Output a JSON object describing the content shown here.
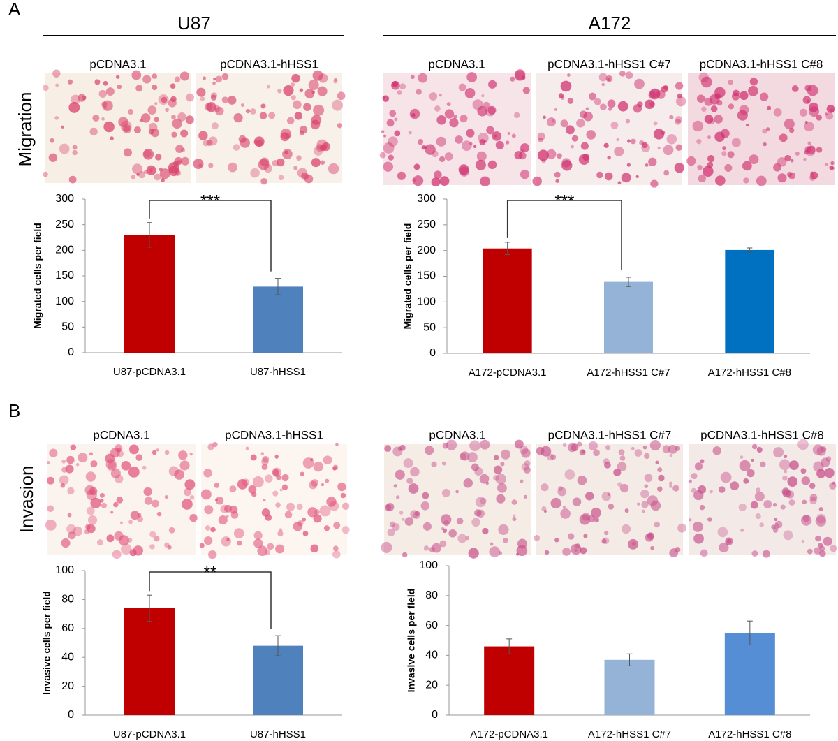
{
  "figure": {
    "panel_a": "A",
    "panel_b": "B",
    "groups": [
      "U87",
      "A172"
    ],
    "rows": [
      "Migration",
      "Invasion"
    ],
    "image_labels": {
      "u87": [
        "pCDNA3.1",
        "pCDNA3.1-hHSS1"
      ],
      "a172": [
        "pCDNA3.1",
        "pCDNA3.1-hHSS1 C#7",
        "pCDNA3.1-hHSS1 C#8"
      ]
    }
  },
  "chart_data": [
    {
      "type": "bar",
      "ylabel": "Migrated cells per field",
      "categories": [
        "U87-pCDNA3.1",
        "U87-hHSS1"
      ],
      "values": [
        230,
        129
      ],
      "errors": [
        24,
        16
      ],
      "colors": [
        "#c00000",
        "#4f81bd"
      ],
      "ylim": [
        0,
        300
      ],
      "yticks": [
        0,
        50,
        100,
        150,
        200,
        250,
        300
      ],
      "annotation": "***"
    },
    {
      "type": "bar",
      "ylabel": "Migrated cells per field",
      "categories": [
        "A172-pCDNA3.1",
        "A172-hHSS1 C#7",
        "A172-hHSS1 C#8"
      ],
      "values": [
        204,
        139,
        201
      ],
      "errors": [
        12,
        9,
        4
      ],
      "colors": [
        "#c00000",
        "#95b3d7",
        "#0070c0"
      ],
      "ylim": [
        0,
        300
      ],
      "yticks": [
        0,
        50,
        100,
        150,
        200,
        250,
        300
      ],
      "annotation": "***"
    },
    {
      "type": "bar",
      "ylabel": "Invasive cells per field",
      "categories": [
        "U87-pCDNA3.1",
        "U87-hHSS1"
      ],
      "values": [
        74,
        48
      ],
      "errors": [
        9,
        7
      ],
      "colors": [
        "#c00000",
        "#4f81bd"
      ],
      "ylim": [
        0,
        100
      ],
      "yticks": [
        0,
        20,
        40,
        60,
        80,
        100
      ],
      "annotation": "**"
    },
    {
      "type": "bar",
      "ylabel": "Invasive cells per field",
      "categories": [
        "A172-pCDNA3.1",
        "A172-hHSS1 C#7",
        "A172-hHSS1 C#8"
      ],
      "values": [
        46,
        37,
        55
      ],
      "errors": [
        5,
        4,
        8
      ],
      "colors": [
        "#c00000",
        "#95b3d7",
        "#558ed5"
      ],
      "ylim": [
        0,
        100
      ],
      "yticks": [
        0,
        20,
        40,
        60,
        80,
        100
      ]
    }
  ]
}
